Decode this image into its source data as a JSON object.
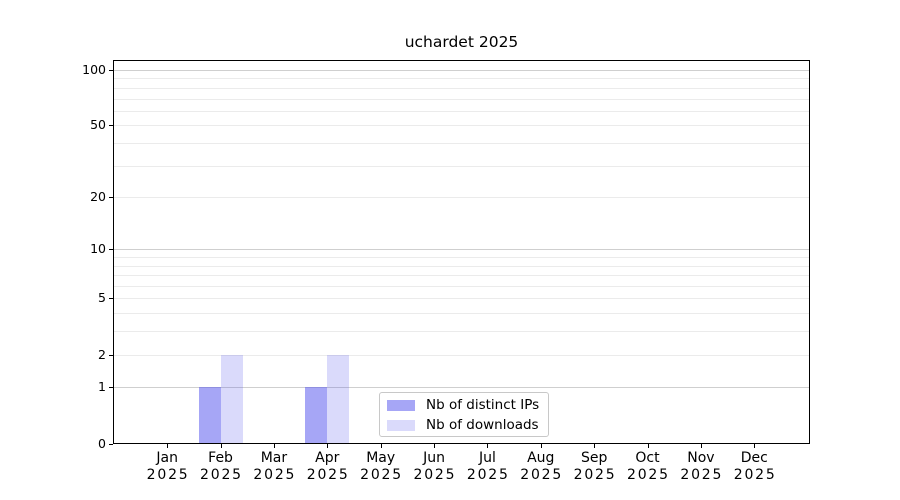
{
  "chart_data": {
    "type": "bar",
    "title": "uchardet 2025",
    "categories": [
      "Jan",
      "Feb",
      "Mar",
      "Apr",
      "May",
      "Jun",
      "Jul",
      "Aug",
      "Sep",
      "Oct",
      "Nov",
      "Dec"
    ],
    "year": "2025",
    "series": [
      {
        "name": "Nb of distinct IPs",
        "values": [
          0,
          1,
          0,
          1,
          0,
          0,
          0,
          0,
          0,
          0,
          0,
          0
        ],
        "base_color": "#5555ee",
        "alpha": 0.52
      },
      {
        "name": "Nb of downloads",
        "values": [
          0,
          2,
          0,
          2,
          0,
          0,
          0,
          0,
          0,
          0,
          0,
          0
        ],
        "base_color": "#5555ee",
        "alpha": 0.22
      }
    ],
    "xlabel": "",
    "ylabel": "",
    "yscale": "log1p",
    "ylim": [
      0,
      114
    ],
    "ytick_labels": [
      0,
      1,
      2,
      5,
      10,
      20,
      50,
      100
    ],
    "major_gridlines": [
      1,
      10,
      100
    ],
    "minor_gridlines": [
      2,
      3,
      4,
      5,
      6,
      7,
      8,
      9,
      20,
      30,
      40,
      50,
      60,
      70,
      80,
      90
    ],
    "grid": true,
    "legend_position": "inside-lower-center"
  },
  "colors": {
    "major_grid": "#cfcfcf",
    "minor_grid": "#ebebeb",
    "spine": "#000000",
    "text": "#000000",
    "legend_border": "#c8c8c8",
    "background": "#ffffff",
    "ips_bar_apparent": "#a8a8f2",
    "downloads_bar_apparent": "#dcdcf9"
  }
}
